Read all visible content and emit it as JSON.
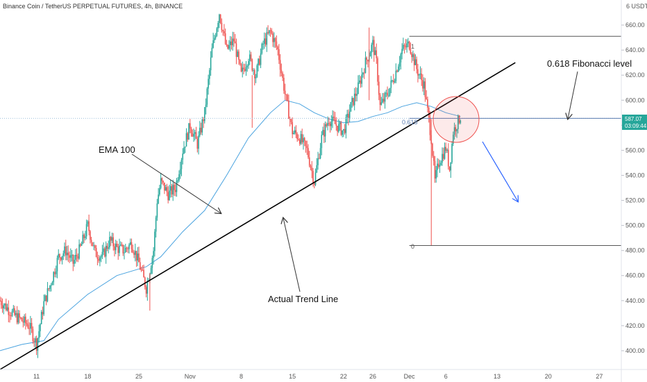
{
  "title": "Binance Coin / TetherUS PERPETUAL FUTURES, 4h, BINANCE",
  "currency": "6 USDT",
  "price_badge": {
    "price": "587.07",
    "countdown": "03:09:44"
  },
  "annotations": {
    "ema_label": "EMA 100",
    "trend_label": "Actual Trend Line",
    "fib_label": "0.618 Fibonacci level",
    "fib_level_1": "1",
    "fib_level_618": "0.618",
    "fib_level_0": "0"
  },
  "colors": {
    "up": "#26a69a",
    "down": "#ef5350",
    "ema": "#4aa3df",
    "trend": "#000000",
    "fib_line": "#5b7db1",
    "badge": "#26a69a",
    "circle": "#ef5350",
    "arrow": "#2962ff"
  },
  "chart_data": {
    "type": "candlestick",
    "title": "Binance Coin / TetherUS PERPETUAL FUTURES, 4h, BINANCE",
    "timeframe": "4h",
    "xlabel": "",
    "ylabel": "",
    "ylim": [
      385,
      680
    ],
    "yticks": [
      400,
      420,
      440,
      460,
      480,
      500,
      520,
      540,
      560,
      580,
      600,
      620,
      640,
      660
    ],
    "ytick_labels": [
      "400.00",
      "420.00",
      "440.00",
      "460.00",
      "480.00",
      "500.00",
      "520.00",
      "540.00",
      "560.00",
      "580.00",
      "600.00",
      "620.00",
      "640.00",
      "660.00"
    ],
    "x_tick_labels": [
      "11",
      "18",
      "25",
      "Nov",
      "8",
      "15",
      "22",
      "26",
      "Dec",
      "6",
      "13",
      "20",
      "27"
    ],
    "x_tick_days": [
      11,
      18,
      25,
      32,
      39,
      46,
      53,
      57,
      62,
      67,
      74,
      81,
      88
    ],
    "x_range_days": [
      6,
      91
    ],
    "anchors": [
      [
        6,
        440
      ],
      [
        8,
        428
      ],
      [
        10,
        420
      ],
      [
        11,
        405
      ],
      [
        12,
        438
      ],
      [
        13,
        455
      ],
      [
        14,
        475
      ],
      [
        15,
        480
      ],
      [
        16,
        470
      ],
      [
        17,
        482
      ],
      [
        18,
        500
      ],
      [
        19,
        478
      ],
      [
        20,
        475
      ],
      [
        21,
        488
      ],
      [
        22,
        482
      ],
      [
        23,
        480
      ],
      [
        24,
        486
      ],
      [
        25,
        470
      ],
      [
        26,
        450
      ],
      [
        27,
        480
      ],
      [
        27.5,
        520
      ],
      [
        28,
        535
      ],
      [
        29,
        525
      ],
      [
        30,
        530
      ],
      [
        31,
        560
      ],
      [
        32,
        580
      ],
      [
        33,
        565
      ],
      [
        34,
        590
      ],
      [
        35,
        640
      ],
      [
        36,
        670
      ],
      [
        37,
        640
      ],
      [
        38,
        648
      ],
      [
        39,
        620
      ],
      [
        40,
        635
      ],
      [
        41,
        620
      ],
      [
        42,
        645
      ],
      [
        43,
        655
      ],
      [
        44,
        640
      ],
      [
        45,
        605
      ],
      [
        46,
        575
      ],
      [
        47,
        570
      ],
      [
        48,
        560
      ],
      [
        49,
        535
      ],
      [
        50,
        570
      ],
      [
        51,
        585
      ],
      [
        52,
        580
      ],
      [
        53,
        575
      ],
      [
        54,
        595
      ],
      [
        55,
        610
      ],
      [
        56,
        630
      ],
      [
        57,
        645
      ],
      [
        57.5,
        630
      ],
      [
        58,
        595
      ],
      [
        59,
        605
      ],
      [
        60,
        620
      ],
      [
        61,
        640
      ],
      [
        62,
        645
      ],
      [
        63,
        625
      ],
      [
        64,
        612
      ],
      [
        65,
        570
      ],
      [
        65.5,
        535
      ],
      [
        66,
        550
      ],
      [
        67,
        562
      ],
      [
        67.5,
        545
      ],
      [
        68,
        575
      ],
      [
        69,
        587.07
      ]
    ],
    "ema100": [
      [
        6,
        400
      ],
      [
        9,
        405
      ],
      [
        12,
        408
      ],
      [
        14,
        425
      ],
      [
        18,
        445
      ],
      [
        22,
        460
      ],
      [
        26,
        467
      ],
      [
        28,
        475
      ],
      [
        31,
        495
      ],
      [
        34,
        512
      ],
      [
        37,
        540
      ],
      [
        40,
        570
      ],
      [
        43,
        590
      ],
      [
        45,
        600
      ],
      [
        47,
        597
      ],
      [
        49,
        590
      ],
      [
        51,
        585
      ],
      [
        53,
        582
      ],
      [
        55,
        583
      ],
      [
        57,
        587
      ],
      [
        59,
        590
      ],
      [
        61,
        595
      ],
      [
        63,
        598
      ],
      [
        65,
        595
      ],
      [
        67,
        590
      ],
      [
        69,
        587
      ]
    ],
    "trend_line": [
      [
        6,
        385
      ],
      [
        76.5,
        630
      ]
    ],
    "fibonacci": {
      "start_day": 62,
      "levels": [
        {
          "label": "1",
          "price": 651
        },
        {
          "label": "0.618",
          "price": 585.5
        },
        {
          "label": "0",
          "price": 484
        }
      ]
    },
    "spikes": [
      {
        "day": 26.5,
        "high": 462,
        "low": 432
      },
      {
        "day": 40.5,
        "high": 620,
        "low": 578
      },
      {
        "day": 56.5,
        "high": 658,
        "low": 600
      },
      {
        "day": 65,
        "high": 585,
        "low": 484
      }
    ],
    "last_price": 587.07
  }
}
